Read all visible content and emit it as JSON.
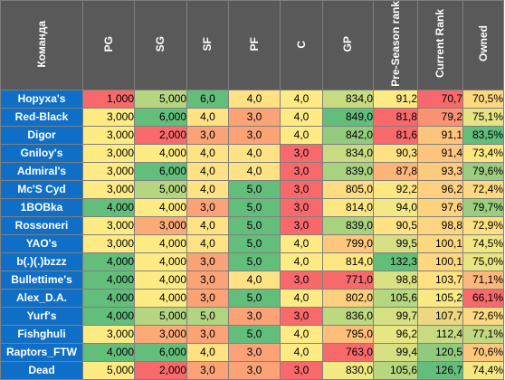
{
  "colors": {
    "header_bg": "#595959",
    "team_bg": "#0f6fc6",
    "scale_red": "#f8696b",
    "scale_yellow": "#ffeb84",
    "scale_green": "#63be7b"
  },
  "columns": [
    "Команда",
    "PG",
    "SG",
    "SF",
    "PF",
    "C",
    "GP",
    "Pre-Season rank",
    "Current Rank",
    "Owned"
  ],
  "rows": [
    {
      "team": "Норуха's",
      "cells": [
        "1,000",
        "5,000",
        "6,0",
        "4,0",
        "4,0",
        "834,0",
        "91,2",
        "70,7",
        "70,5%"
      ],
      "colors": [
        "#f8696b",
        "#b5d580",
        "#63be7b",
        "#ffe283",
        "#ffeb84",
        "#c8db81",
        "#ffeb84",
        "#f8696b",
        "#fed880"
      ]
    },
    {
      "team": "Red-Black",
      "cells": [
        "3,000",
        "6,000",
        "4,0",
        "3,0",
        "4,0",
        "849,0",
        "81,8",
        "79,2",
        "75,1%"
      ],
      "colors": [
        "#ffeb84",
        "#63be7b",
        "#ffe283",
        "#fba376",
        "#ffeb84",
        "#63be7b",
        "#f8696b",
        "#fa9273",
        "#e7e483"
      ]
    },
    {
      "team": "Digor",
      "cells": [
        "3,000",
        "2,000",
        "3,0",
        "3,0",
        "4,0",
        "842,0",
        "81,6",
        "91,1",
        "83,5%"
      ],
      "colors": [
        "#ffeb84",
        "#f8696b",
        "#fba376",
        "#fba376",
        "#ffeb84",
        "#93cb7e",
        "#f8696b",
        "#fdc47d",
        "#63be7b"
      ]
    },
    {
      "team": "Gniloy's",
      "cells": [
        "3,000",
        "4,000",
        "4,0",
        "4,0",
        "3,0",
        "834,0",
        "90,3",
        "91,4",
        "73,4%"
      ],
      "colors": [
        "#ffeb84",
        "#ffeb84",
        "#ffe283",
        "#ffe283",
        "#f8696b",
        "#c8db81",
        "#fee182",
        "#fdc57d",
        "#fee783"
      ]
    },
    {
      "team": "Admiral's",
      "cells": [
        "3,000",
        "6,000",
        "4,0",
        "4,0",
        "3,0",
        "839,0",
        "87,8",
        "93,3",
        "79,6%"
      ],
      "colors": [
        "#ffeb84",
        "#63be7b",
        "#ffe283",
        "#ffe283",
        "#f8696b",
        "#a9d27f",
        "#fcb479",
        "#fdca7e",
        "#9ccd7e"
      ]
    },
    {
      "team": "Mc'S Cyd",
      "cells": [
        "3,000",
        "5,000",
        "4,0",
        "5,0",
        "3,0",
        "805,0",
        "92,2",
        "96,2",
        "72,4%"
      ],
      "colors": [
        "#ffeb84",
        "#b5d580",
        "#ffe283",
        "#63be7b",
        "#f8696b",
        "#fedc81",
        "#fee783",
        "#fed07f",
        "#fed981"
      ]
    },
    {
      "team": "1BOBka",
      "cells": [
        "4,000",
        "4,000",
        "3,0",
        "5,0",
        "3,0",
        "814,0",
        "94,0",
        "97,6",
        "79,7%"
      ],
      "colors": [
        "#63be7b",
        "#ffeb84",
        "#fba376",
        "#63be7b",
        "#f8696b",
        "#fee683",
        "#f4e884",
        "#fed380",
        "#9acd7e"
      ]
    },
    {
      "team": "Rossoneri",
      "cells": [
        "3,000",
        "3,000",
        "4,0",
        "5,0",
        "3,0",
        "839,0",
        "90,5",
        "98,8",
        "72,9%"
      ],
      "colors": [
        "#ffeb84",
        "#fcaa77",
        "#ffe283",
        "#63be7b",
        "#f8696b",
        "#a9d27f",
        "#fee283",
        "#fed580",
        "#fedf82"
      ]
    },
    {
      "team": "YAO's",
      "cells": [
        "3,000",
        "4,000",
        "4,0",
        "5,0",
        "4,0",
        "799,0",
        "99,5",
        "100,1",
        "74,5%"
      ],
      "colors": [
        "#ffeb84",
        "#ffeb84",
        "#ffe283",
        "#63be7b",
        "#ffeb84",
        "#fdc87d",
        "#d6e082",
        "#fed880",
        "#f3e784"
      ]
    },
    {
      "team": "b(.)(.)bzzz",
      "cells": [
        "4,000",
        "4,000",
        "3,0",
        "5,0",
        "4,0",
        "814,0",
        "132,3",
        "100,1",
        "75,0%"
      ],
      "colors": [
        "#63be7b",
        "#ffeb84",
        "#fba376",
        "#63be7b",
        "#ffeb84",
        "#fee683",
        "#63be7b",
        "#fed880",
        "#eae583"
      ]
    },
    {
      "team": "Bullettime's",
      "cells": [
        "4,000",
        "4,000",
        "3,0",
        "4,0",
        "3,0",
        "771,0",
        "98,8",
        "103,7",
        "71,1%"
      ],
      "colors": [
        "#63be7b",
        "#ffeb84",
        "#fba376",
        "#ffe283",
        "#f8696b",
        "#f8696b",
        "#dae182",
        "#ffe183",
        "#fcb77a"
      ]
    },
    {
      "team": "Alex_D.A.",
      "cells": [
        "4,000",
        "4,000",
        "3,0",
        "5,0",
        "4,0",
        "802,0",
        "105,6",
        "105,2",
        "66,1%"
      ],
      "colors": [
        "#63be7b",
        "#ffeb84",
        "#fba376",
        "#63be7b",
        "#ffeb84",
        "#fdd07f",
        "#b6d680",
        "#f9e984",
        "#f8696b"
      ]
    },
    {
      "team": "Yurf's",
      "cells": [
        "4,000",
        "5,000",
        "5,0",
        "3,0",
        "3,0",
        "836,0",
        "99,7",
        "107,7",
        "72,6%"
      ],
      "colors": [
        "#63be7b",
        "#b5d580",
        "#b1d480",
        "#fba376",
        "#f8696b",
        "#bcd881",
        "#d5e082",
        "#ecd782",
        "#fed981"
      ]
    },
    {
      "team": "Fishghuli",
      "cells": [
        "3,000",
        "3,000",
        "3,0",
        "5,0",
        "4,0",
        "795,0",
        "96,2",
        "112,4",
        "77,1%"
      ],
      "colors": [
        "#ffeb84",
        "#fcaa77",
        "#fba376",
        "#63be7b",
        "#ffeb84",
        "#fdbe7b",
        "#e8e583",
        "#c9db81",
        "#c2d881"
      ]
    },
    {
      "team": "Raptors_FTW",
      "cells": [
        "4,000",
        "6,000",
        "4,0",
        "3,0",
        "4,0",
        "763,0",
        "99,4",
        "120,5",
        "70,6%"
      ],
      "colors": [
        "#63be7b",
        "#63be7b",
        "#ffe283",
        "#fba376",
        "#ffeb84",
        "#f8696b",
        "#d6e082",
        "#91ca7d",
        "#fdc87e"
      ]
    },
    {
      "team": "Dead",
      "cells": [
        "5,000",
        "2,000",
        "3,0",
        "3,0",
        "3,0",
        "830,0",
        "105,6",
        "126,7",
        "74,4%"
      ],
      "colors": [
        "#ffeb84",
        "#f8696b",
        "#fba376",
        "#fba376",
        "#f8696b",
        "#f1e984",
        "#b6d680",
        "#63be7b",
        "#f6e884"
      ]
    }
  ]
}
